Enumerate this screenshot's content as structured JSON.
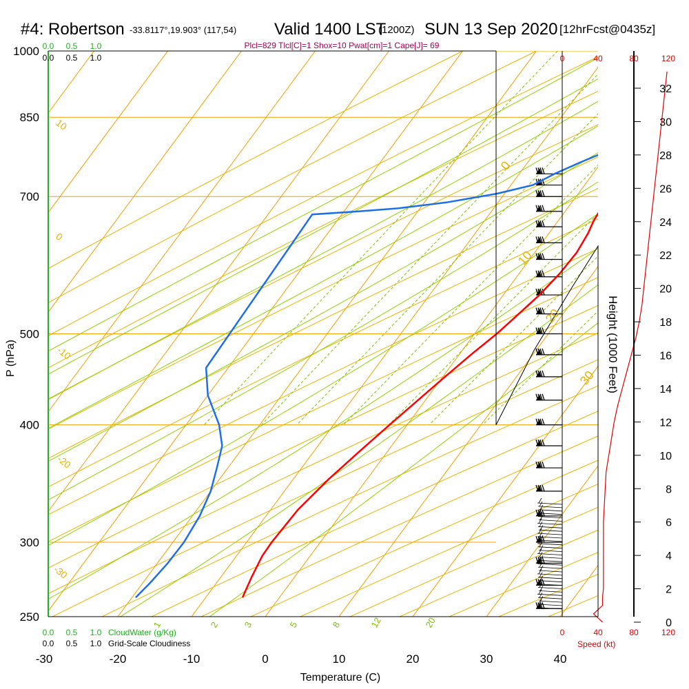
{
  "header": {
    "title": "#4: Robertson",
    "coords": "-33.8117°,19.903° (117,54)",
    "valid": "Valid 1400 LST",
    "valid_z": "(1200Z)",
    "date": "SUN 13 Sep 2020",
    "fcst": "[12hrFcst@0435z]",
    "params": "Plcl=829 Tlcl[C]=1 Shox=10 Pwat[cm]=1 Cape[J]= 69"
  },
  "colors": {
    "temperature": "#ff0000",
    "dewpoint": "#1e6ee6",
    "parcel": "#800050",
    "isotherm": "#f0a000",
    "dry_adiabat": "#e6b400",
    "moist_adiabat": "#90d000",
    "mixing_ratio": "#80c000",
    "params_text": "#a00050",
    "cloud_label": "#20b020",
    "wind_speed": "#e00000"
  },
  "chart_data": {
    "type": "skew-t",
    "x_axis": {
      "label": "Temperature (C)",
      "ticks": [
        -30,
        -20,
        -10,
        0,
        10,
        20,
        30,
        40
      ],
      "range": [
        -33,
        48
      ]
    },
    "y_axis": {
      "label": "P (hPa)",
      "ticks": [
        250,
        300,
        400,
        500,
        700,
        850,
        1000
      ],
      "range": [
        1000,
        250
      ],
      "scale": "log"
    },
    "height_axis": {
      "label": "Height (1000 Feet)",
      "ticks": [
        0,
        2,
        4,
        6,
        8,
        10,
        12,
        14,
        16,
        18,
        20,
        22,
        24,
        26,
        28,
        30,
        32
      ],
      "range": [
        0,
        34
      ]
    },
    "top_cloud_scale": {
      "ticks_cloudwater": [
        "0.0",
        "0.5",
        "1.0"
      ],
      "ticks_cloudiness": [
        "0.0",
        "0.5",
        "1.0"
      ]
    },
    "bottom_cloud_scale": {
      "ticks_cloudwater": [
        "0.0",
        "0.5",
        "1.0"
      ],
      "ticks_cloudiness": [
        "0.0",
        "0.5",
        "1.0"
      ],
      "label_cloudwater": "CloudWater (g/Kg)",
      "label_cloudiness": "Grid-Scale Cloudiness"
    },
    "wind_speed_axis": {
      "label": "Speed (kt)",
      "ticks": [
        "0",
        "40",
        "80",
        "120"
      ]
    },
    "dry_adiabat_labels": [
      "10",
      "0",
      "-10",
      "-20",
      "-30"
    ],
    "moist_adiabat_labels": [
      "0",
      "10",
      "20",
      "30"
    ],
    "mixing_ratio_labels": [
      "1",
      "2",
      "3",
      "5",
      "8",
      "12",
      "20"
    ],
    "temperature_profile": [
      [
        1000,
        17.5
      ],
      [
        985,
        16.5
      ],
      [
        960,
        14.5
      ],
      [
        925,
        12.0
      ],
      [
        900,
        10.2
      ],
      [
        875,
        8.6
      ],
      [
        850,
        7.3
      ],
      [
        825,
        6.0
      ],
      [
        800,
        5.0
      ],
      [
        775,
        4.4
      ],
      [
        750,
        4.0
      ],
      [
        725,
        4.1
      ],
      [
        700,
        4.3
      ],
      [
        680,
        4.6
      ],
      [
        660,
        4.8
      ],
      [
        640,
        5.3
      ],
      [
        610,
        5.7
      ],
      [
        580,
        5.5
      ],
      [
        550,
        4.9
      ],
      [
        520,
        3.8
      ],
      [
        500,
        3.0
      ],
      [
        475,
        1.6
      ],
      [
        450,
        0.3
      ],
      [
        425,
        -1.0
      ],
      [
        400,
        -2.4
      ],
      [
        375,
        -3.8
      ],
      [
        350,
        -5.2
      ],
      [
        325,
        -6.3
      ],
      [
        300,
        -6.6
      ],
      [
        290,
        -6.5
      ],
      [
        275,
        -5.8
      ],
      [
        262,
        -5.0
      ]
    ],
    "dewpoint_profile": [
      [
        995,
        4.8
      ],
      [
        990,
        4.2
      ],
      [
        960,
        4.2
      ],
      [
        925,
        4.5
      ],
      [
        900,
        4.5
      ],
      [
        875,
        4.6
      ],
      [
        850,
        4.6
      ],
      [
        825,
        3.6
      ],
      [
        800,
        2.0
      ],
      [
        780,
        -0.6
      ],
      [
        760,
        -3.0
      ],
      [
        740,
        -5.2
      ],
      [
        720,
        -7.0
      ],
      [
        705,
        -11.0
      ],
      [
        690,
        -17.0
      ],
      [
        680,
        -23.0
      ],
      [
        675,
        -28.0
      ],
      [
        670,
        -34.0
      ],
      [
        460,
        -33.0
      ],
      [
        430,
        -30.0
      ],
      [
        400,
        -25.5
      ],
      [
        380,
        -23.0
      ],
      [
        360,
        -21.5
      ],
      [
        340,
        -20.0
      ],
      [
        320,
        -19.0
      ],
      [
        300,
        -18.5
      ],
      [
        285,
        -18.6
      ],
      [
        272,
        -19.0
      ],
      [
        262,
        -19.5
      ]
    ],
    "parcel_profile": [
      [
        985,
        17.5
      ],
      [
        950,
        14.6
      ],
      [
        925,
        12.6
      ],
      [
        900,
        10.6
      ],
      [
        875,
        8.7
      ],
      [
        850,
        6.9
      ],
      [
        830,
        5.6
      ],
      [
        800,
        4.8
      ],
      [
        775,
        4.2
      ],
      [
        755,
        4.0
      ]
    ],
    "surface_temperature_marker": 18,
    "surface_dewpoint_marker": 7.5,
    "wind_speed_profile": [
      [
        0,
        45
      ],
      [
        0.5,
        35
      ],
      [
        1,
        45
      ],
      [
        1.5,
        45
      ],
      [
        2,
        46
      ],
      [
        3,
        46
      ],
      [
        4,
        46
      ],
      [
        5,
        46
      ],
      [
        6,
        46
      ],
      [
        7,
        47
      ],
      [
        8,
        48
      ],
      [
        9,
        49
      ],
      [
        10,
        52
      ],
      [
        11,
        55
      ],
      [
        12,
        58
      ],
      [
        13,
        62
      ],
      [
        14,
        67
      ],
      [
        15,
        72
      ],
      [
        16,
        77
      ],
      [
        17,
        82
      ],
      [
        18,
        86
      ],
      [
        19,
        89
      ],
      [
        20,
        91
      ],
      [
        21,
        93
      ],
      [
        22,
        95
      ],
      [
        23,
        97
      ],
      [
        24,
        99
      ],
      [
        25,
        101
      ],
      [
        26,
        103
      ],
      [
        27,
        105
      ],
      [
        28,
        107
      ],
      [
        29,
        109
      ],
      [
        30,
        111
      ],
      [
        31,
        113
      ],
      [
        32,
        115
      ],
      [
        33,
        117
      ]
    ],
    "wind_barb_pressures": [
      255,
      270,
      285,
      300,
      320,
      340,
      360,
      380,
      400,
      425,
      450,
      475,
      500,
      525,
      550,
      575,
      600,
      625,
      650,
      675,
      700,
      720,
      740
    ]
  }
}
